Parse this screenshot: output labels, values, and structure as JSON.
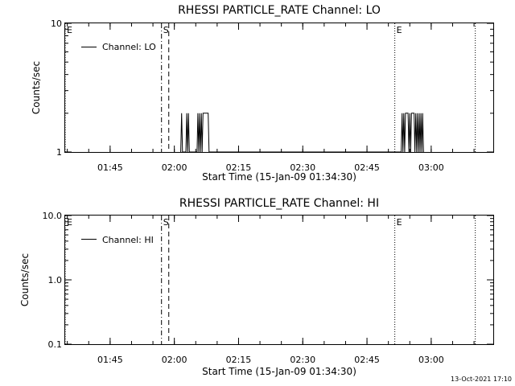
{
  "footer_timestamp": "13-Oct-2021 17:10",
  "chart_data": [
    {
      "type": "line",
      "title": "RHESSI PARTICLE_RATE Channel: LO",
      "xlabel": "Start Time (15-Jan-09 01:34:30)",
      "ylabel": "Counts/sec",
      "x_unit": "minutes since 01:34:30",
      "xlim": [
        0,
        100
      ],
      "ylim": [
        1,
        10
      ],
      "yscale": "log",
      "xticks": [
        {
          "v": 10.5,
          "label": "01:45"
        },
        {
          "v": 25.5,
          "label": "02:00"
        },
        {
          "v": 40.5,
          "label": "02:15"
        },
        {
          "v": 55.5,
          "label": "02:30"
        },
        {
          "v": 70.5,
          "label": "02:45"
        },
        {
          "v": 85.5,
          "label": "03:00"
        }
      ],
      "yticks": [
        {
          "v": 1,
          "label": "1"
        },
        {
          "v": 10,
          "label": "10"
        }
      ],
      "legend": "Channel: LO",
      "legend_position": "top-left",
      "series": [
        {
          "name": "Channel: LO",
          "points": [
            [
              27.0,
              1
            ],
            [
              27.2,
              2
            ],
            [
              27.4,
              1
            ],
            [
              28.2,
              1
            ],
            [
              28.4,
              2
            ],
            [
              28.6,
              1
            ],
            [
              28.8,
              2
            ],
            [
              29.0,
              1
            ],
            [
              30.8,
              1
            ],
            [
              31.0,
              2
            ],
            [
              31.2,
              1
            ],
            [
              31.4,
              2
            ],
            [
              31.6,
              1
            ],
            [
              31.8,
              2
            ],
            [
              32.0,
              1
            ],
            [
              32.2,
              2
            ],
            [
              33.4,
              2
            ],
            [
              33.6,
              1
            ],
            [
              78.5,
              1
            ],
            [
              78.7,
              2
            ],
            [
              78.9,
              1
            ],
            [
              79.1,
              2
            ],
            [
              79.3,
              1
            ],
            [
              79.5,
              2
            ],
            [
              80.1,
              2
            ],
            [
              80.3,
              1
            ],
            [
              80.5,
              2
            ],
            [
              80.7,
              1
            ],
            [
              80.9,
              2
            ],
            [
              81.5,
              2
            ],
            [
              81.7,
              1
            ],
            [
              81.9,
              2
            ],
            [
              82.1,
              1
            ],
            [
              82.3,
              2
            ],
            [
              82.5,
              1
            ],
            [
              82.7,
              2
            ],
            [
              82.9,
              1
            ],
            [
              83.1,
              2
            ],
            [
              83.3,
              1
            ],
            [
              83.5,
              2
            ],
            [
              83.7,
              1
            ]
          ]
        }
      ],
      "markers": [
        {
          "x": 0.0,
          "style": "dotted",
          "label": "E"
        },
        {
          "x": 22.5,
          "style": "dashdot",
          "label": "S"
        },
        {
          "x": 24.2,
          "style": "dashed",
          "label": ""
        },
        {
          "x": 77.0,
          "style": "dotted",
          "label": "E"
        },
        {
          "x": 95.8,
          "style": "dotted",
          "label": ""
        }
      ]
    },
    {
      "type": "line",
      "title": "RHESSI PARTICLE_RATE Channel: HI",
      "xlabel": "Start Time (15-Jan-09 01:34:30)",
      "ylabel": "Counts/sec",
      "x_unit": "minutes since 01:34:30",
      "xlim": [
        0,
        100
      ],
      "ylim": [
        0.1,
        10
      ],
      "yscale": "log",
      "xticks": [
        {
          "v": 10.5,
          "label": "01:45"
        },
        {
          "v": 25.5,
          "label": "02:00"
        },
        {
          "v": 40.5,
          "label": "02:15"
        },
        {
          "v": 55.5,
          "label": "02:30"
        },
        {
          "v": 70.5,
          "label": "02:45"
        },
        {
          "v": 85.5,
          "label": "03:00"
        }
      ],
      "yticks": [
        {
          "v": 0.1,
          "label": "0.1"
        },
        {
          "v": 1,
          "label": "1.0"
        },
        {
          "v": 10,
          "label": "10.0"
        }
      ],
      "legend": "Channel: HI",
      "legend_position": "top-left",
      "series": [
        {
          "name": "Channel: HI",
          "points": []
        }
      ],
      "markers": [
        {
          "x": 0.0,
          "style": "dotted",
          "label": "E"
        },
        {
          "x": 22.5,
          "style": "dashdot",
          "label": "S"
        },
        {
          "x": 24.2,
          "style": "dashed",
          "label": ""
        },
        {
          "x": 77.0,
          "style": "dotted",
          "label": "E"
        },
        {
          "x": 95.8,
          "style": "dotted",
          "label": ""
        }
      ]
    }
  ]
}
